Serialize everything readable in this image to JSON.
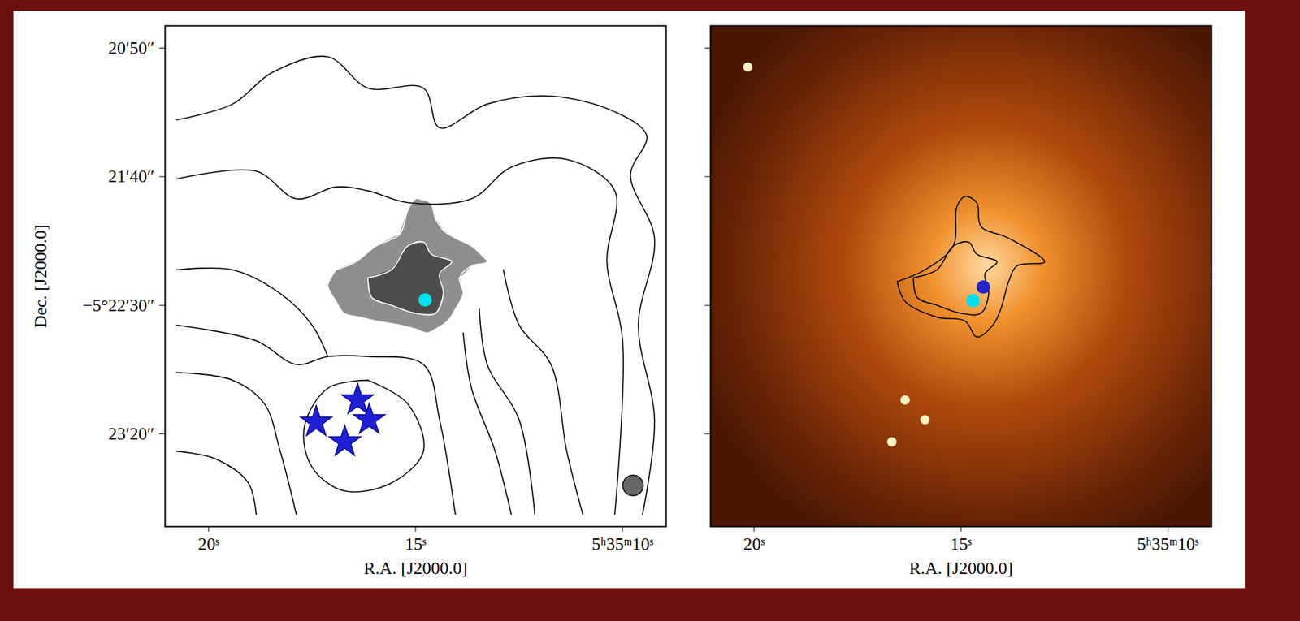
{
  "chart_data": [
    {
      "type": "contour_map",
      "xlabel": "R.A. [J2000.0]",
      "ylabel": "Dec. [J2000.0]",
      "xlim": [
        21.05,
        8.95
      ],
      "ylim": [
        -19436.0,
        -19241.4
      ],
      "xticks": [
        {
          "value": 20,
          "label": "20ˢ"
        },
        {
          "value": 15,
          "label": "15ˢ"
        },
        {
          "value": 10,
          "label": "5ʰ35ᵐ10ˢ"
        }
      ],
      "yticks": [
        {
          "value": -19250,
          "label": "20′50″"
        },
        {
          "value": -19300,
          "label": "21′40″"
        },
        {
          "value": -19350,
          "label": "−5°22′30″"
        },
        {
          "value": -19400,
          "label": "23′20″"
        }
      ],
      "tick_labels": true,
      "emission": [
        {
          "color": "#8f8f8f",
          "points": [
            [
              16.92,
              -19336.2
            ],
            [
              16.44,
              -19333.1
            ],
            [
              15.96,
              -19327.0
            ],
            [
              15.38,
              -19322.4
            ],
            [
              15.19,
              -19313.2
            ],
            [
              15.0,
              -19308.6
            ],
            [
              14.65,
              -19310.1
            ],
            [
              14.52,
              -19316.3
            ],
            [
              14.33,
              -19320.9
            ],
            [
              14.04,
              -19323.9
            ],
            [
              13.65,
              -19327.0
            ],
            [
              13.27,
              -19333.1
            ],
            [
              13.65,
              -19334.7
            ],
            [
              13.94,
              -19339.3
            ],
            [
              13.85,
              -19345.4
            ],
            [
              14.04,
              -19351.5
            ],
            [
              14.23,
              -19356.1
            ],
            [
              14.71,
              -19360.7
            ],
            [
              15.0,
              -19359.2
            ],
            [
              15.38,
              -19357.7
            ],
            [
              15.96,
              -19356.1
            ],
            [
              16.35,
              -19354.6
            ],
            [
              16.73,
              -19353.1
            ],
            [
              16.92,
              -19348.5
            ],
            [
              17.12,
              -19342.3
            ],
            [
              16.92,
              -19336.2
            ]
          ]
        },
        {
          "color": "#4d4d4d",
          "points": [
            [
              16.15,
              -19339.3
            ],
            [
              15.58,
              -19336.2
            ],
            [
              15.19,
              -19327.0
            ],
            [
              14.81,
              -19325.5
            ],
            [
              14.62,
              -19330.1
            ],
            [
              14.13,
              -19333.1
            ],
            [
              14.42,
              -19337.7
            ],
            [
              14.33,
              -19345.4
            ],
            [
              14.52,
              -19353.1
            ],
            [
              15.0,
              -19353.1
            ],
            [
              15.58,
              -19350.0
            ],
            [
              16.06,
              -19346.9
            ],
            [
              16.15,
              -19339.3
            ]
          ]
        }
      ],
      "contours": [
        {
          "color": "white",
          "points": [
            [
              16.92,
              -19336.2
            ],
            [
              16.44,
              -19333.1
            ],
            [
              15.96,
              -19327.0
            ],
            [
              15.38,
              -19322.4
            ],
            [
              15.19,
              -19313.2
            ],
            [
              15.0,
              -19308.6
            ],
            [
              14.65,
              -19310.1
            ],
            [
              14.52,
              -19316.3
            ],
            [
              14.33,
              -19320.9
            ],
            [
              14.04,
              -19323.9
            ],
            [
              13.65,
              -19327.0
            ],
            [
              13.27,
              -19333.1
            ],
            [
              13.65,
              -19334.7
            ],
            [
              13.94,
              -19339.3
            ],
            [
              13.85,
              -19345.4
            ],
            [
              14.04,
              -19351.5
            ],
            [
              14.23,
              -19356.1
            ],
            [
              14.71,
              -19360.7
            ],
            [
              15.0,
              -19359.2
            ],
            [
              15.38,
              -19357.7
            ],
            [
              15.96,
              -19356.1
            ],
            [
              16.35,
              -19354.6
            ],
            [
              16.73,
              -19353.1
            ],
            [
              16.92,
              -19348.5
            ],
            [
              17.12,
              -19342.3
            ],
            [
              16.92,
              -19336.2
            ]
          ]
        },
        {
          "color": "white",
          "points": [
            [
              16.15,
              -19339.3
            ],
            [
              15.58,
              -19336.2
            ],
            [
              15.19,
              -19327.0
            ],
            [
              14.81,
              -19325.5
            ],
            [
              14.62,
              -19330.1
            ],
            [
              14.13,
              -19333.1
            ],
            [
              14.42,
              -19337.7
            ],
            [
              14.33,
              -19345.4
            ],
            [
              14.52,
              -19353.1
            ],
            [
              15.0,
              -19353.1
            ],
            [
              15.58,
              -19350.0
            ],
            [
              16.06,
              -19346.9
            ],
            [
              16.15,
              -19339.3
            ]
          ]
        },
        {
          "color": "black",
          "points": [
            [
              20.77,
              -19277.9
            ],
            [
              19.42,
              -19271.8
            ],
            [
              18.46,
              -19259.5
            ],
            [
              17.12,
              -19253.4
            ],
            [
              16.15,
              -19265.6
            ],
            [
              14.81,
              -19265.6
            ],
            [
              14.42,
              -19281.0
            ],
            [
              13.27,
              -19271.8
            ],
            [
              11.73,
              -19268.7
            ],
            [
              10.19,
              -19274.8
            ],
            [
              9.42,
              -19284.0
            ],
            [
              9.81,
              -19299.4
            ],
            [
              9.23,
              -19323.9
            ],
            [
              9.62,
              -19357.7
            ],
            [
              9.23,
              -19394.5
            ],
            [
              9.52,
              -19431.3
            ]
          ]
        },
        {
          "color": "black",
          "points": [
            [
              20.77,
              -19300.9
            ],
            [
              18.85,
              -19297.9
            ],
            [
              17.88,
              -19308.6
            ],
            [
              16.92,
              -19304.0
            ],
            [
              16.15,
              -19305.5
            ],
            [
              15.19,
              -19310.1
            ],
            [
              13.65,
              -19308.6
            ],
            [
              12.69,
              -19296.3
            ],
            [
              11.35,
              -19293.3
            ],
            [
              10.19,
              -19305.5
            ],
            [
              10.38,
              -19333.1
            ],
            [
              10.0,
              -19363.8
            ],
            [
              10.19,
              -19431.3
            ]
          ]
        },
        {
          "color": "black",
          "points": [
            [
              20.77,
              -19336.2
            ],
            [
              19.42,
              -19336.2
            ],
            [
              18.27,
              -19345.4
            ],
            [
              17.5,
              -19357.7
            ],
            [
              17.12,
              -19369.9
            ]
          ]
        },
        {
          "color": "black",
          "points": [
            [
              12.88,
              -19336.2
            ],
            [
              12.5,
              -19357.7
            ],
            [
              11.73,
              -19373.0
            ],
            [
              11.35,
              -19406.7
            ],
            [
              10.96,
              -19431.3
            ]
          ]
        },
        {
          "color": "black",
          "points": [
            [
              13.46,
              -19351.5
            ],
            [
              13.27,
              -19373.0
            ],
            [
              12.5,
              -19394.5
            ],
            [
              12.12,
              -19431.3
            ]
          ]
        },
        {
          "color": "black",
          "points": [
            [
              13.85,
              -19360.7
            ],
            [
              13.65,
              -19382.2
            ],
            [
              13.08,
              -19406.7
            ],
            [
              12.69,
              -19431.3
            ]
          ]
        },
        {
          "color": "black",
          "points": [
            [
              20.77,
              -19376.1
            ],
            [
              19.42,
              -19379.1
            ],
            [
              18.65,
              -19388.3
            ],
            [
              18.27,
              -19406.7
            ],
            [
              17.88,
              -19431.3
            ]
          ]
        },
        {
          "color": "black",
          "points": [
            [
              20.77,
              -19406.7
            ],
            [
              19.81,
              -19409.8
            ],
            [
              19.04,
              -19419.0
            ],
            [
              18.85,
              -19431.3
            ]
          ]
        },
        {
          "color": "black",
          "points": [
            [
              16.15,
              -19379.1
            ],
            [
              15.19,
              -19388.3
            ],
            [
              14.81,
              -19406.7
            ],
            [
              15.58,
              -19419.0
            ],
            [
              16.73,
              -19422.1
            ],
            [
              17.5,
              -19412.9
            ],
            [
              17.69,
              -19397.5
            ],
            [
              17.12,
              -19382.2
            ],
            [
              16.15,
              -19379.1
            ]
          ]
        },
        {
          "color": "black",
          "points": [
            [
              20.77,
              -19357.7
            ],
            [
              18.85,
              -19363.8
            ],
            [
              17.88,
              -19373.0
            ],
            [
              17.12,
              -19369.9
            ],
            [
              16.15,
              -19369.9
            ],
            [
              14.81,
              -19373.0
            ],
            [
              14.42,
              -19394.5
            ],
            [
              14.04,
              -19431.3
            ]
          ]
        }
      ],
      "markers": [
        {
          "marker": "star",
          "color": "#1f1fd6",
          "x": [
            16.4,
            17.4,
            16.12,
            16.71
          ],
          "y": [
            -19386.8,
            -19395.4,
            -19394.5,
            -19403.1
          ]
        },
        {
          "marker": "circle",
          "color": "#00e0ea",
          "x": [
            14.77
          ],
          "y": [
            -19347.9
          ]
        }
      ],
      "beam": {
        "x": 9.75,
        "y": -19420,
        "diameter": 8
      }
    },
    {
      "type": "image_contour",
      "xlabel": "R.A. [J2000.0]",
      "xlim": [
        21.05,
        8.95
      ],
      "ylim": [
        -19436.0,
        -19241.4
      ],
      "xticks": [
        {
          "value": 20,
          "label": "20ˢ"
        },
        {
          "value": 15,
          "label": "15ˢ"
        },
        {
          "value": 10,
          "label": "5ʰ35ᵐ10ˢ"
        }
      ],
      "yticks": [
        -19250,
        -19300,
        -19350,
        -19400
      ],
      "tick_labels": "x",
      "contours": [
        {
          "color": "black",
          "points": [
            [
              16.54,
              -19340.8
            ],
            [
              15.87,
              -19336.2
            ],
            [
              15.19,
              -19327.0
            ],
            [
              15.1,
              -19311.7
            ],
            [
              14.9,
              -19307.7
            ],
            [
              14.62,
              -19310.1
            ],
            [
              14.52,
              -19319.3
            ],
            [
              13.85,
              -19323.9
            ],
            [
              12.98,
              -19333.1
            ],
            [
              13.65,
              -19334.7
            ],
            [
              13.85,
              -19340.8
            ],
            [
              14.04,
              -19351.5
            ],
            [
              14.23,
              -19357.7
            ],
            [
              14.62,
              -19362.3
            ],
            [
              14.9,
              -19356.1
            ],
            [
              15.58,
              -19354.6
            ],
            [
              16.35,
              -19348.5
            ],
            [
              16.54,
              -19340.8
            ]
          ]
        },
        {
          "color": "black",
          "points": [
            [
              16.15,
              -19339.3
            ],
            [
              15.58,
              -19336.2
            ],
            [
              15.19,
              -19327.0
            ],
            [
              14.81,
              -19325.5
            ],
            [
              14.62,
              -19330.1
            ],
            [
              14.13,
              -19333.1
            ],
            [
              14.42,
              -19337.7
            ],
            [
              14.33,
              -19345.4
            ],
            [
              14.52,
              -19353.1
            ],
            [
              15.0,
              -19353.1
            ],
            [
              15.58,
              -19350.0
            ],
            [
              16.06,
              -19346.9
            ],
            [
              16.15,
              -19339.3
            ]
          ]
        }
      ],
      "markers": [
        {
          "marker": "circle",
          "color": "#fff2c0",
          "x": [
            20.15,
            16.67,
            16.35,
            15.87
          ],
          "y": [
            -19257.4,
            -19403.1,
            -19386.8,
            -19394.5
          ]
        },
        {
          "marker": "circle",
          "color": "#2424c8",
          "x": [
            14.46
          ],
          "y": [
            -19342.9
          ]
        },
        {
          "marker": "circle",
          "color": "#00e0ea",
          "x": [
            14.71
          ],
          "y": [
            -19348.2
          ]
        }
      ]
    }
  ]
}
